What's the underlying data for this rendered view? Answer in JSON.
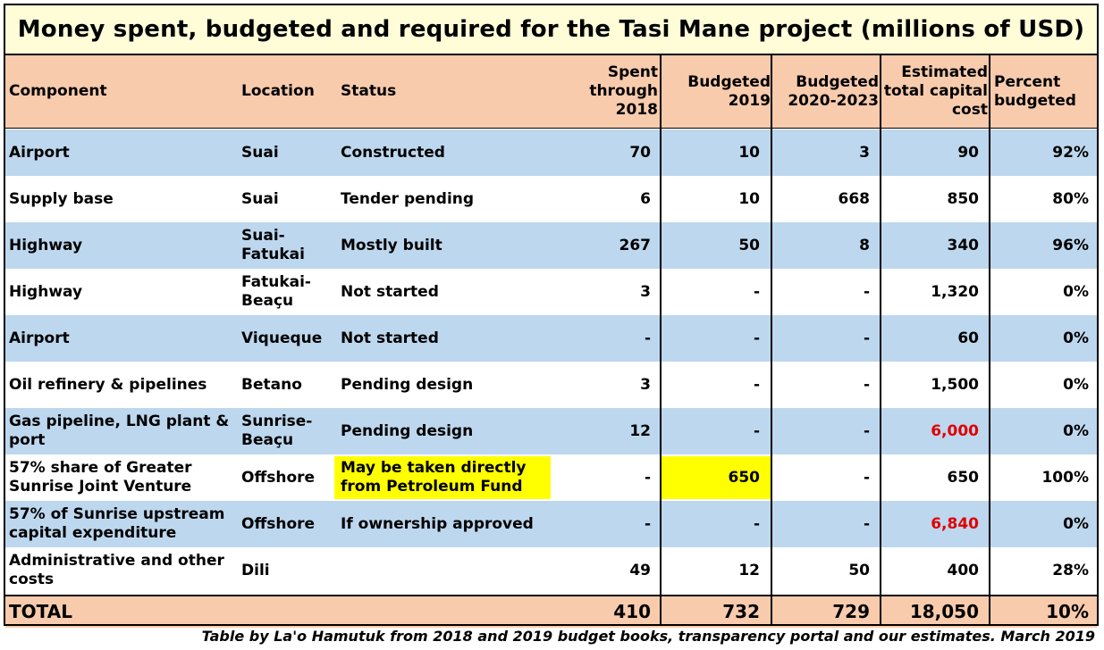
{
  "title": "Money spent, budgeted and required for the Tasi Mane project (millions of USD)",
  "headers": {
    "component": "Component",
    "location": "Location",
    "status": "Status",
    "spent": "Spent through 2018",
    "b2019": "Budgeted 2019",
    "b2020": "Budgeted 2020-2023",
    "estimated": "Estimated total capital cost",
    "percent": "Percent budgeted"
  },
  "rows": [
    {
      "component": "Airport",
      "location": "Suai",
      "status": "Constructed",
      "spent": "70",
      "b2019": "10",
      "b2020": "3",
      "estimated": "90",
      "percent": "92%"
    },
    {
      "component": "Supply base",
      "location": "Suai",
      "status": "Tender pending",
      "spent": "6",
      "b2019": "10",
      "b2020": "668",
      "estimated": "850",
      "percent": "80%"
    },
    {
      "component": "Highway",
      "location": "Suai-Fatukai",
      "status": "Mostly built",
      "spent": "267",
      "b2019": "50",
      "b2020": "8",
      "estimated": "340",
      "percent": "96%"
    },
    {
      "component": "Highway",
      "location": "Fatukai-Beaçu",
      "status": "Not started",
      "spent": "3",
      "b2019": "-",
      "b2020": "-",
      "estimated": "1,320",
      "percent": "0%"
    },
    {
      "component": "Airport",
      "location": "Viqueque",
      "status": "Not started",
      "spent": "-",
      "b2019": "-",
      "b2020": "-",
      "estimated": "60",
      "percent": "0%"
    },
    {
      "component": "Oil refinery & pipelines",
      "location": "Betano",
      "status": "Pending design",
      "spent": "3",
      "b2019": "-",
      "b2020": "-",
      "estimated": "1,500",
      "percent": "0%"
    },
    {
      "component": "Gas pipeline, LNG plant & port",
      "location": "Sunrise-Beaçu",
      "status": "Pending design",
      "spent": "12",
      "b2019": "-",
      "b2020": "-",
      "estimated": "6,000",
      "percent": "0%"
    },
    {
      "component": "57% share of Greater Sunrise Joint Venture",
      "location": "Offshore",
      "status": "May be taken directly from Petroleum Fund",
      "spent": "-",
      "b2019": "650",
      "b2020": "-",
      "estimated": "650",
      "percent": "100%"
    },
    {
      "component": "57% of Sunrise upstream capital expenditure",
      "location": "Offshore",
      "status": "If ownership approved",
      "spent": "-",
      "b2019": "-",
      "b2020": "-",
      "estimated": "6,840",
      "percent": "0%"
    },
    {
      "component": "Administrative and other costs",
      "location": "Dili",
      "status": "",
      "spent": "49",
      "b2019": "12",
      "b2020": "50",
      "estimated": "400",
      "percent": "28%"
    }
  ],
  "total": {
    "label": "TOTAL",
    "spent": "410",
    "b2019": "732",
    "b2020": "729",
    "estimated": "18,050",
    "percent": "10%"
  },
  "footer": "Table by La'o Hamutuk from 2018 and 2019 budget books, transparency portal and our estimates.  March 2019",
  "colors": {
    "header_bg": "#f8cbad",
    "band_blue": "#bdd7ee",
    "title_bg": "#fefdd8",
    "highlight": "#ffff00",
    "warning_red": "#e00000"
  }
}
